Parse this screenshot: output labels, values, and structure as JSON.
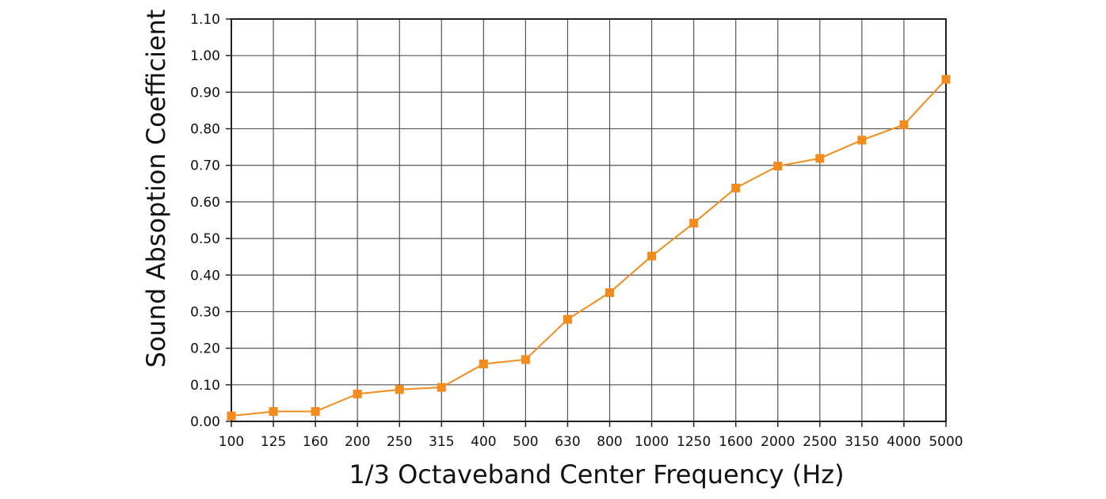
{
  "chart_data": {
    "type": "line",
    "title": "",
    "xlabel": "1/3 Octaveband Center Frequency  (Hz)",
    "ylabel": "Sound Absoption Coefficient",
    "categories": [
      "100",
      "125",
      "160",
      "200",
      "250",
      "315",
      "400",
      "500",
      "630",
      "800",
      "1000",
      "1250",
      "1600",
      "2000",
      "2500",
      "3150",
      "4000",
      "5000"
    ],
    "y_ticks": [
      "0.00",
      "0.10",
      "0.20",
      "0.30",
      "0.40",
      "0.50",
      "0.60",
      "0.70",
      "0.80",
      "0.90",
      "1.00",
      "1.10"
    ],
    "ylim": [
      0,
      1.1
    ],
    "grid": true,
    "legend": "none",
    "series": [
      {
        "values": [
          0.015,
          0.027,
          0.027,
          0.075,
          0.087,
          0.093,
          0.157,
          0.169,
          0.279,
          0.352,
          0.452,
          0.542,
          0.638,
          0.698,
          0.719,
          0.769,
          0.811,
          0.935
        ],
        "color": "#F28C1C",
        "marker": "square"
      }
    ]
  }
}
